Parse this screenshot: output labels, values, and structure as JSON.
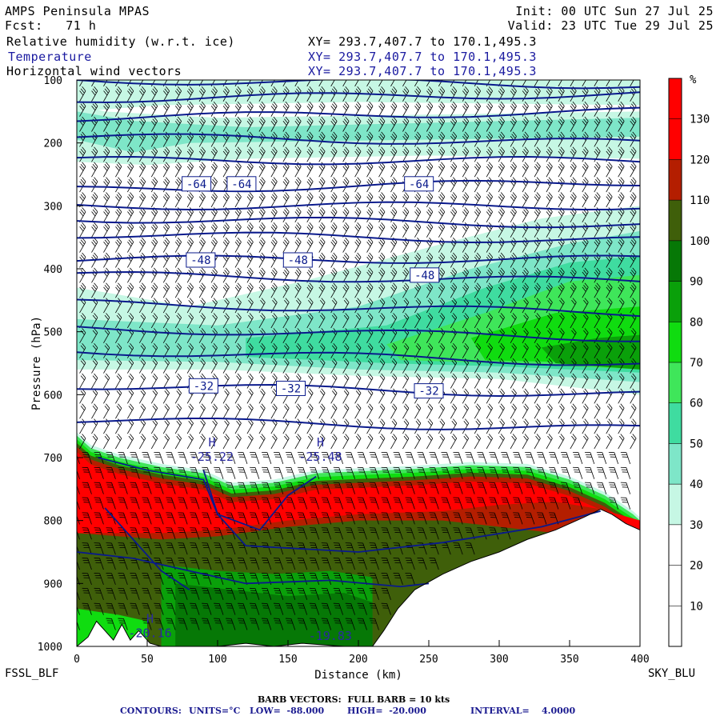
{
  "header": {
    "title": "AMPS Peninsula MPAS",
    "forecast": "Fcst:   71 h",
    "init": "Init: 00 UTC Sun 27 Jul 25",
    "valid": "Valid: 23 UTC Tue 29 Jul 25",
    "fields": [
      {
        "name": "Relative humidity (w.r.t. ice)",
        "xy": "XY= 293.7,407.7 to 170.1,495.3"
      },
      {
        "name": "Temperature",
        "xy": "XY= 293.7,407.7 to 170.1,495.3"
      },
      {
        "name": "Horizontal wind vectors",
        "xy": "XY= 293.7,407.7 to 170.1,495.3"
      }
    ]
  },
  "endpoints": {
    "left": "FSSL_BLF",
    "right": "SKY_BLU"
  },
  "footer": {
    "barb_note": "BARB VECTORS:  FULL BARB = 10 kts",
    "contours_label": "CONTOURS:",
    "units": "UNITS=°C",
    "low": "LOW=  -88.000",
    "high": "HIGH=  -20.000",
    "interval": "INTERVAL=    4.0000"
  },
  "colors": {
    "contour": "#0a1a8c",
    "rh_bands": [
      "#ffffff",
      "#ffffff",
      "#ffffff",
      "#c6f7e4",
      "#7ee6c8",
      "#3fdca0",
      "#3fe65a",
      "#10dc10",
      "#0aa00a",
      "#067806",
      "#3f5f0a",
      "#b41e00",
      "#ff0000"
    ]
  },
  "chart_data": {
    "type": "heatmap",
    "xlabel": "Distance (km)",
    "ylabel": "Pressure (hPa)",
    "xlim": [
      0,
      400
    ],
    "ylim": [
      1000,
      100
    ],
    "xticks": [
      0,
      50,
      100,
      150,
      200,
      250,
      300,
      350,
      400
    ],
    "yticks": [
      100,
      200,
      300,
      400,
      500,
      600,
      700,
      800,
      900,
      1000
    ],
    "colorbar": {
      "unit": "%",
      "ticks": [
        10,
        20,
        30,
        40,
        50,
        60,
        70,
        80,
        90,
        100,
        110,
        120,
        130
      ],
      "bands": [
        0,
        10,
        20,
        30,
        40,
        50,
        60,
        70,
        80,
        90,
        100,
        110,
        120,
        140
      ]
    },
    "contour_labels": [
      {
        "x": 85,
        "p": 265,
        "text": "-64"
      },
      {
        "x": 117,
        "p": 265,
        "text": "-64"
      },
      {
        "x": 243,
        "p": 265,
        "text": "-64"
      },
      {
        "x": 88,
        "p": 386,
        "text": "-48"
      },
      {
        "x": 157,
        "p": 386,
        "text": "-48"
      },
      {
        "x": 247,
        "p": 410,
        "text": "-48"
      },
      {
        "x": 90,
        "p": 586,
        "text": "-32"
      },
      {
        "x": 152,
        "p": 590,
        "text": "-32"
      },
      {
        "x": 250,
        "p": 594,
        "text": "-32"
      }
    ],
    "extrema": [
      {
        "x": 96,
        "p": 700,
        "mark": "H",
        "value": "-25.22"
      },
      {
        "x": 173,
        "p": 700,
        "mark": "H",
        "value": "-25.48"
      },
      {
        "x": 52,
        "p": 980,
        "mark": "H",
        "value": "-20.16"
      },
      {
        "x": 180,
        "p": 985,
        "mark": "",
        "value": "-19.83"
      }
    ]
  }
}
